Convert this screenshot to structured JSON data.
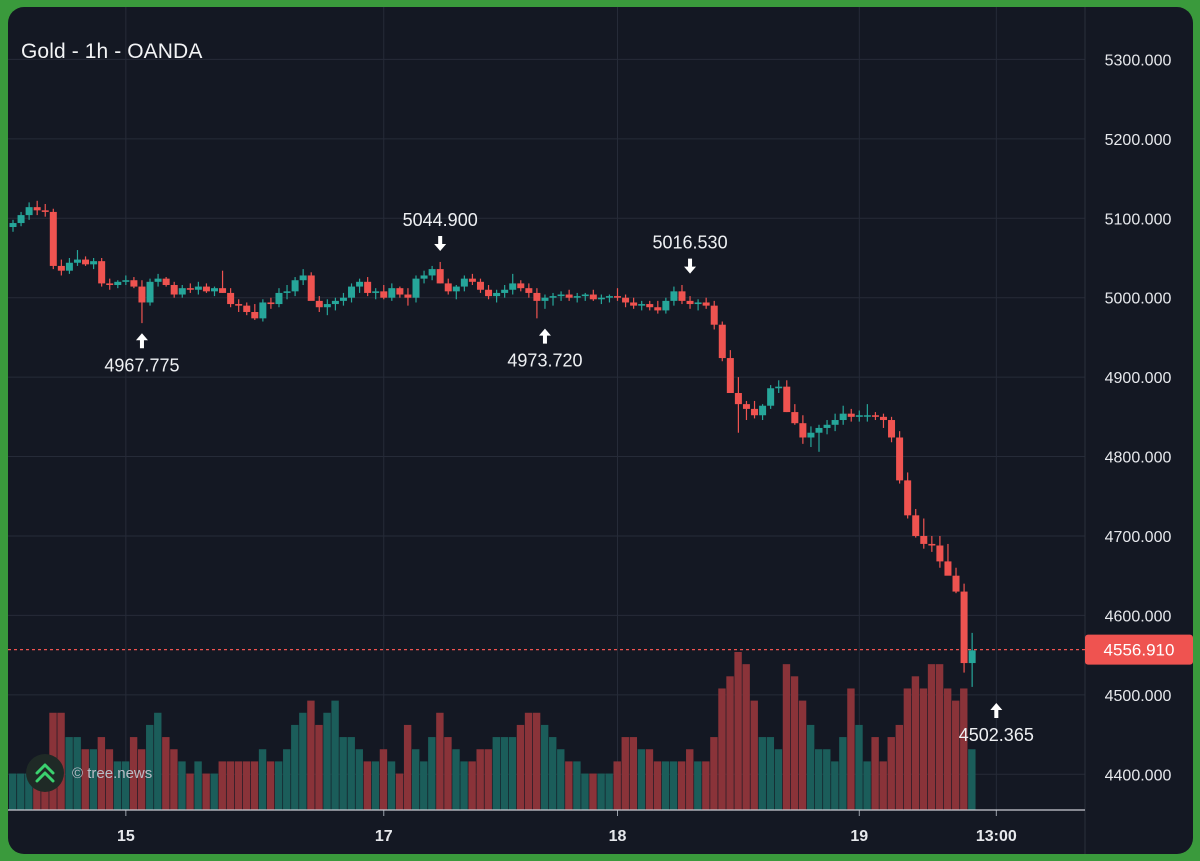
{
  "chart": {
    "title": "Gold - 1h - OANDA",
    "watermark": "© tree.news"
  },
  "colors": {
    "up": "#26a69a",
    "down": "#ef5350",
    "volume_up": "#1b5d5a",
    "volume_down": "#8a3339",
    "grid": "#262b38",
    "background": "#141823",
    "price_line": "#ef5350"
  },
  "chart_data": {
    "type": "candlestick",
    "symbol": "Gold",
    "timeframe": "1h",
    "source": "OANDA",
    "y_ticks": [
      5300,
      5200,
      5100,
      5000,
      4900,
      4800,
      4700,
      4600,
      4500,
      4400
    ],
    "y_tick_labels": [
      "5300.000",
      "5200.000",
      "5100.000",
      "5000.000",
      "4900.000",
      "4800.000",
      "4700.000",
      "4600.000",
      "4500.000",
      "4400.000"
    ],
    "ylim": [
      4355,
      5366
    ],
    "x_labels": [
      {
        "label": "15",
        "index": 14
      },
      {
        "label": "17",
        "index": 46
      },
      {
        "label": "18",
        "index": 75
      },
      {
        "label": "19",
        "index": 105
      },
      {
        "label": "13:00",
        "index": 122
      }
    ],
    "last_price": 4556.91,
    "last_price_label": "4556.910",
    "annotations": [
      {
        "label": "5044.900",
        "index": 53,
        "price": 5044.9,
        "marker": "high"
      },
      {
        "label": "4967.775",
        "index": 16,
        "price": 4967.775,
        "marker": "low"
      },
      {
        "label": "5016.530",
        "index": 84,
        "price": 5016.53,
        "marker": "high"
      },
      {
        "label": "4973.720",
        "index": 66,
        "price": 4973.72,
        "marker": "low"
      },
      {
        "label": "4502.365",
        "index": 122,
        "price": 4502.365,
        "marker": "low"
      }
    ],
    "candles": [
      [
        5089,
        5098,
        5083,
        5094,
        3
      ],
      [
        5094,
        5108,
        5090,
        5104,
        3
      ],
      [
        5104,
        5120,
        5098,
        5114,
        3
      ],
      [
        5114,
        5122,
        5104,
        5110,
        4
      ],
      [
        5110,
        5118,
        5102,
        5108,
        4
      ],
      [
        5108,
        5112,
        5036,
        5040,
        8
      ],
      [
        5040,
        5048,
        5028,
        5034,
        8
      ],
      [
        5034,
        5050,
        5030,
        5044,
        6
      ],
      [
        5044,
        5060,
        5040,
        5048,
        6
      ],
      [
        5048,
        5052,
        5040,
        5042,
        5
      ],
      [
        5042,
        5050,
        5036,
        5046,
        5
      ],
      [
        5046,
        5050,
        5014,
        5018,
        6
      ],
      [
        5018,
        5024,
        5010,
        5016,
        5
      ],
      [
        5016,
        5022,
        5012,
        5020,
        4
      ],
      [
        5020,
        5028,
        5016,
        5022,
        4
      ],
      [
        5022,
        5026,
        5012,
        5014,
        6
      ],
      [
        5014,
        5022,
        4968,
        4994,
        5
      ],
      [
        4994,
        5024,
        4990,
        5020,
        7
      ],
      [
        5020,
        5030,
        5014,
        5024,
        8
      ],
      [
        5024,
        5026,
        5014,
        5016,
        6
      ],
      [
        5016,
        5020,
        5000,
        5004,
        5
      ],
      [
        5004,
        5016,
        5000,
        5012,
        4
      ],
      [
        5012,
        5018,
        5006,
        5010,
        3
      ],
      [
        5010,
        5020,
        5004,
        5014,
        4
      ],
      [
        5014,
        5018,
        5006,
        5008,
        3
      ],
      [
        5008,
        5014,
        5002,
        5012,
        3
      ],
      [
        5012,
        5034,
        5006,
        5006,
        4
      ],
      [
        5006,
        5012,
        4988,
        4992,
        4
      ],
      [
        4992,
        4998,
        4982,
        4990,
        4
      ],
      [
        4990,
        4994,
        4978,
        4982,
        4
      ],
      [
        4982,
        4992,
        4972,
        4974,
        4
      ],
      [
        4974,
        4998,
        4970,
        4994,
        5
      ],
      [
        4994,
        5000,
        4986,
        4992,
        4
      ],
      [
        4992,
        5012,
        4988,
        5006,
        4
      ],
      [
        5006,
        5016,
        4998,
        5008,
        5
      ],
      [
        5008,
        5026,
        5002,
        5022,
        7
      ],
      [
        5022,
        5036,
        5016,
        5028,
        8
      ],
      [
        5028,
        5032,
        5000,
        4996,
        9
      ],
      [
        4996,
        5002,
        4982,
        4988,
        7
      ],
      [
        4988,
        4998,
        4978,
        4992,
        8
      ],
      [
        4992,
        5000,
        4984,
        4996,
        9
      ],
      [
        4996,
        5006,
        4990,
        5000,
        6
      ],
      [
        5000,
        5018,
        4994,
        5014,
        6
      ],
      [
        5014,
        5024,
        5006,
        5020,
        5
      ],
      [
        5020,
        5026,
        5002,
        5006,
        4
      ],
      [
        5006,
        5012,
        4998,
        5008,
        4
      ],
      [
        5008,
        5016,
        4998,
        5000,
        5
      ],
      [
        5000,
        5018,
        4996,
        5012,
        4
      ],
      [
        5012,
        5014,
        5000,
        5004,
        3
      ],
      [
        5004,
        5012,
        4990,
        5000,
        7
      ],
      [
        5000,
        5028,
        4994,
        5024,
        5
      ],
      [
        5024,
        5034,
        5018,
        5028,
        4
      ],
      [
        5028,
        5040,
        5022,
        5036,
        6
      ],
      [
        5036,
        5045,
        5018,
        5018,
        8
      ],
      [
        5018,
        5024,
        5004,
        5008,
        6
      ],
      [
        5008,
        5016,
        4998,
        5014,
        5
      ],
      [
        5014,
        5028,
        5008,
        5024,
        4
      ],
      [
        5024,
        5030,
        5016,
        5020,
        4
      ],
      [
        5020,
        5024,
        5006,
        5010,
        5
      ],
      [
        5010,
        5016,
        4998,
        5002,
        5
      ],
      [
        5002,
        5010,
        4994,
        5006,
        6
      ],
      [
        5006,
        5016,
        5000,
        5010,
        6
      ],
      [
        5010,
        5030,
        5004,
        5018,
        6
      ],
      [
        5018,
        5022,
        5008,
        5012,
        7
      ],
      [
        5012,
        5018,
        5000,
        5006,
        8
      ],
      [
        5006,
        5012,
        4974,
        4996,
        8
      ],
      [
        4996,
        5004,
        4986,
        5000,
        7
      ],
      [
        5000,
        5006,
        4990,
        5002,
        6
      ],
      [
        5002,
        5008,
        4996,
        5004,
        5
      ],
      [
        5004,
        5010,
        4996,
        5000,
        4
      ],
      [
        5000,
        5006,
        4994,
        5002,
        4
      ],
      [
        5002,
        5006,
        4996,
        5004,
        3
      ],
      [
        5004,
        5010,
        4996,
        4998,
        3
      ],
      [
        4998,
        5004,
        4992,
        5000,
        3
      ],
      [
        5000,
        5004,
        4994,
        5002,
        3
      ],
      [
        5002,
        5012,
        4996,
        5000,
        4
      ],
      [
        5000,
        5004,
        4988,
        4994,
        6
      ],
      [
        4994,
        5000,
        4986,
        4990,
        6
      ],
      [
        4990,
        4996,
        4984,
        4992,
        5
      ],
      [
        4992,
        4996,
        4984,
        4988,
        5
      ],
      [
        4988,
        4996,
        4980,
        4984,
        4
      ],
      [
        4984,
        5000,
        4980,
        4996,
        4
      ],
      [
        4996,
        5014,
        4990,
        5008,
        4
      ],
      [
        5008,
        5016,
        4992,
        4996,
        4
      ],
      [
        4996,
        5002,
        4986,
        4992,
        5
      ],
      [
        4992,
        4998,
        4984,
        4994,
        4
      ],
      [
        4994,
        5000,
        4986,
        4990,
        4
      ],
      [
        4990,
        4996,
        4960,
        4966,
        6
      ],
      [
        4966,
        4970,
        4920,
        4924,
        10
      ],
      [
        4924,
        4934,
        4880,
        4880,
        11
      ],
      [
        4880,
        4900,
        4830,
        4866,
        13
      ],
      [
        4866,
        4870,
        4846,
        4860,
        12
      ],
      [
        4860,
        4870,
        4848,
        4852,
        9
      ],
      [
        4852,
        4866,
        4846,
        4864,
        6
      ],
      [
        4864,
        4890,
        4860,
        4886,
        6
      ],
      [
        4886,
        4896,
        4880,
        4888,
        5
      ],
      [
        4888,
        4896,
        4856,
        4856,
        12
      ],
      [
        4856,
        4866,
        4840,
        4842,
        11
      ],
      [
        4842,
        4852,
        4816,
        4824,
        9
      ],
      [
        4824,
        4838,
        4812,
        4830,
        7
      ],
      [
        4830,
        4840,
        4806,
        4836,
        5
      ],
      [
        4836,
        4846,
        4828,
        4840,
        5
      ],
      [
        4840,
        4854,
        4832,
        4846,
        4
      ],
      [
        4846,
        4864,
        4840,
        4854,
        6
      ],
      [
        4854,
        4860,
        4844,
        4850,
        10
      ],
      [
        4850,
        4858,
        4844,
        4852,
        7
      ],
      [
        4852,
        4866,
        4844,
        4852,
        4
      ],
      [
        4852,
        4856,
        4846,
        4850,
        6
      ],
      [
        4850,
        4854,
        4836,
        4846,
        4
      ],
      [
        4846,
        4850,
        4818,
        4824,
        6
      ],
      [
        4824,
        4832,
        4766,
        4770,
        7
      ],
      [
        4770,
        4780,
        4722,
        4726,
        10
      ],
      [
        4726,
        4734,
        4698,
        4700,
        11
      ],
      [
        4700,
        4722,
        4684,
        4690,
        10
      ],
      [
        4690,
        4700,
        4680,
        4688,
        12
      ],
      [
        4688,
        4700,
        4660,
        4668,
        12
      ],
      [
        4668,
        4690,
        4652,
        4650,
        10
      ],
      [
        4650,
        4660,
        4628,
        4630,
        9
      ],
      [
        4630,
        4640,
        4528,
        4540,
        10
      ],
      [
        4540,
        4578,
        4510,
        4556,
        5
      ]
    ]
  }
}
